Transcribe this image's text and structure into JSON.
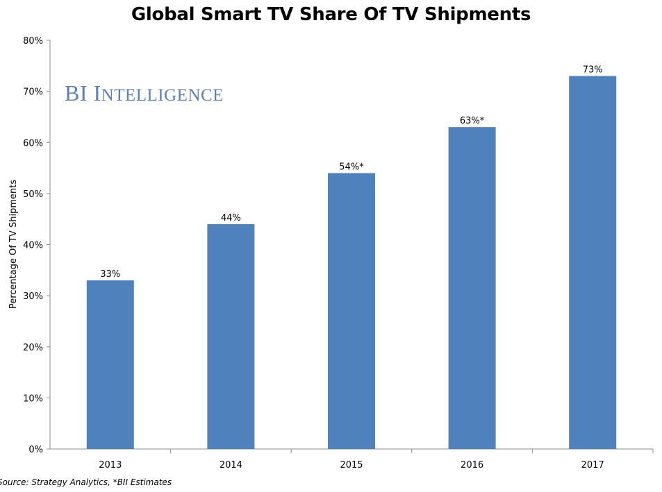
{
  "chart_data": {
    "type": "bar",
    "title": "Global Smart TV Share Of TV Shipments",
    "xlabel": "",
    "ylabel": "Percentage Of TV Shipments",
    "categories": [
      "2013",
      "2014",
      "2015",
      "2016",
      "2017"
    ],
    "values": [
      33,
      44,
      54,
      63,
      73
    ],
    "data_labels": [
      "33%",
      "44%",
      "54%*",
      "63%*",
      "73%"
    ],
    "ylim": [
      0,
      80
    ],
    "yticks": [
      0,
      10,
      20,
      30,
      40,
      50,
      60,
      70,
      80
    ],
    "ytick_labels": [
      "0%",
      "10%",
      "20%",
      "30%",
      "40%",
      "50%",
      "60%",
      "70%",
      "80%"
    ],
    "grid": false,
    "bar_color": "#4f81bd"
  },
  "watermark": {
    "text": "BI Intelligence",
    "color": "#5b7fb6"
  },
  "source": "Source: Strategy Analytics, *BII Estimates"
}
